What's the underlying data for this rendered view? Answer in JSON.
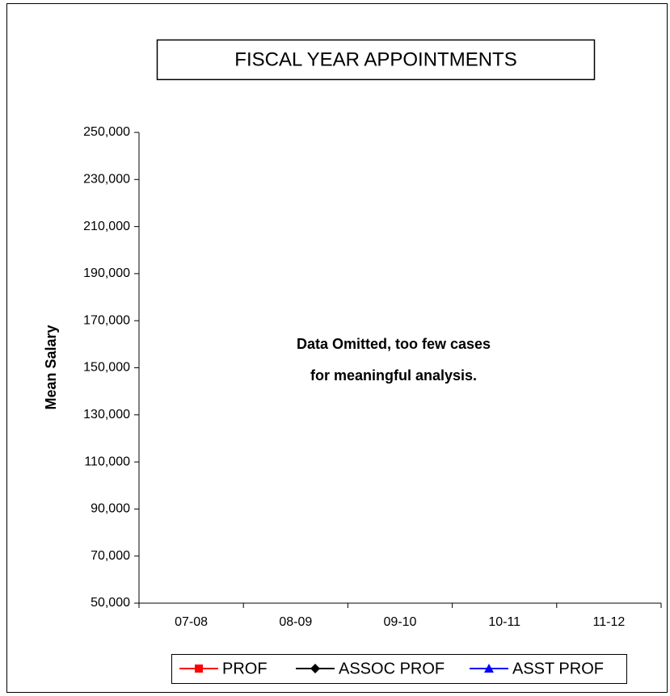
{
  "chart_data": {
    "type": "line",
    "title": "FISCAL YEAR APPOINTMENTS",
    "y_label": "Mean Salary",
    "annotation": [
      "Data Omitted, too few cases",
      "for meaningful analysis."
    ],
    "categories": [
      "07-08",
      "08-09",
      "09-10",
      "10-11",
      "11-12"
    ],
    "series": [
      {
        "name": "PROF",
        "color": "#ff0000",
        "marker": "square",
        "values": [
          null,
          null,
          null,
          null,
          null
        ]
      },
      {
        "name": "ASSOC PROF",
        "color": "#000000",
        "marker": "diamond",
        "values": [
          null,
          null,
          null,
          null,
          null
        ]
      },
      {
        "name": "ASST PROF",
        "color": "#0000ff",
        "marker": "triangle",
        "values": [
          null,
          null,
          null,
          null,
          null
        ]
      }
    ],
    "ylim": [
      50000,
      250000
    ],
    "yticks": [
      {
        "value": 50000,
        "label": "50,000"
      },
      {
        "value": 70000,
        "label": "70,000"
      },
      {
        "value": 90000,
        "label": "90,000"
      },
      {
        "value": 110000,
        "label": "110,000"
      },
      {
        "value": 130000,
        "label": "130,000"
      },
      {
        "value": 150000,
        "label": "150,000"
      },
      {
        "value": 170000,
        "label": "170,000"
      },
      {
        "value": 190000,
        "label": "190,000"
      },
      {
        "value": 210000,
        "label": "210,000"
      },
      {
        "value": 230000,
        "label": "230,000"
      },
      {
        "value": 250000,
        "label": "250,000"
      }
    ],
    "grid": false,
    "legend": "bottom"
  }
}
